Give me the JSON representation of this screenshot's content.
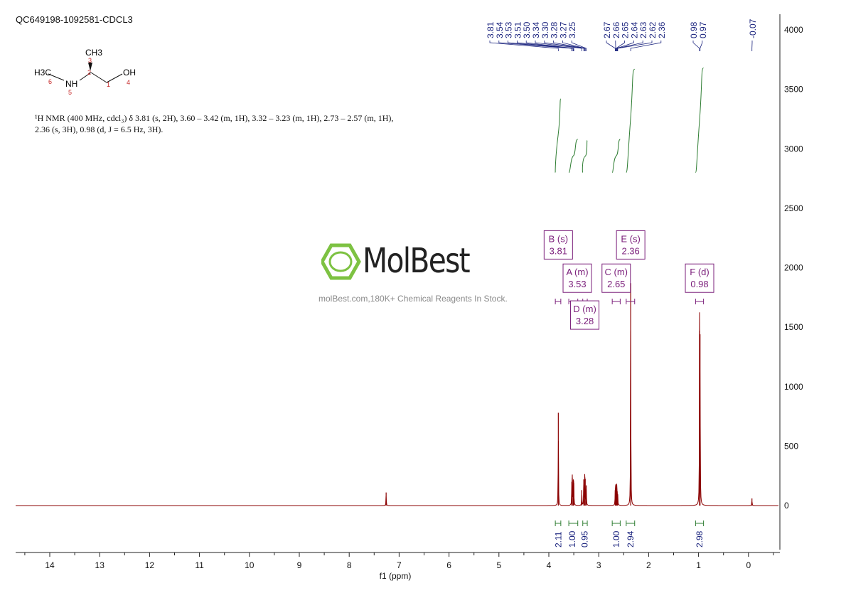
{
  "header": {
    "sample_id": "QC649198-1092581-CDCL3"
  },
  "description": {
    "line1": "¹H NMR (400 MHz, cdcl₃) δ 3.81 (s, 2H), 3.60 – 3.42 (m, 1H), 3.32 – 3.23 (m, 1H), 2.73 – 2.57 (m, 1H),",
    "line2": "2.36 (s, 3H), 0.98 (d, J = 6.5 Hz, 3H)."
  },
  "structure": {
    "labels": [
      "CH3",
      "H3C",
      "NH",
      "OH"
    ],
    "atom_numbers": [
      "3",
      "2",
      "6",
      "5",
      "1",
      "4"
    ]
  },
  "watermark": {
    "brand": "MolBest",
    "tagline": "molBest.com,180K+ Chemical Reagents In Stock."
  },
  "colors": {
    "spectrum": "#8b0000",
    "peak_labels": "#1a237e",
    "integrals": "#2e7d32",
    "multiplets": "#7b1f7b",
    "logo_green": "#7dc242"
  },
  "chart_data": {
    "type": "line",
    "title": "",
    "xlabel": "f1 (ppm)",
    "ylabel": "",
    "xlim": [
      14.7,
      -0.6
    ],
    "ylim": [
      -400,
      4100
    ],
    "x_ticks": [
      14,
      13,
      12,
      11,
      10,
      9,
      8,
      7,
      6,
      5,
      4,
      3,
      2,
      1,
      0
    ],
    "y_ticks": [
      0,
      500,
      1000,
      1500,
      2000,
      2500,
      3000,
      3500,
      4000
    ],
    "peaks": [
      {
        "ppm": 7.26,
        "height": 110
      },
      {
        "ppm": 3.81,
        "height": 780
      },
      {
        "ppm": 3.54,
        "height": 200
      },
      {
        "ppm": 3.53,
        "height": 230
      },
      {
        "ppm": 3.51,
        "height": 215
      },
      {
        "ppm": 3.5,
        "height": 190
      },
      {
        "ppm": 3.34,
        "height": 130
      },
      {
        "ppm": 3.3,
        "height": 220
      },
      {
        "ppm": 3.28,
        "height": 240
      },
      {
        "ppm": 3.27,
        "height": 225
      },
      {
        "ppm": 3.25,
        "height": 170
      },
      {
        "ppm": 2.67,
        "height": 130
      },
      {
        "ppm": 2.66,
        "height": 150
      },
      {
        "ppm": 2.65,
        "height": 160
      },
      {
        "ppm": 2.64,
        "height": 145
      },
      {
        "ppm": 2.63,
        "height": 120
      },
      {
        "ppm": 2.62,
        "height": 95
      },
      {
        "ppm": 2.36,
        "height": 1870
      },
      {
        "ppm": 0.98,
        "height": 1470
      },
      {
        "ppm": 0.97,
        "height": 1440
      },
      {
        "ppm": -0.07,
        "height": 60
      }
    ],
    "peak_labels": [
      "3.81",
      "3.54",
      "3.53",
      "3.51",
      "3.50",
      "3.34",
      "3.30",
      "3.28",
      "3.27",
      "3.25",
      "2.67",
      "2.66",
      "2.65",
      "2.64",
      "2.63",
      "2.62",
      "2.36",
      "0.98",
      "0.97",
      "-0.07"
    ],
    "integrals": [
      {
        "ppm": 3.81,
        "value": "2.11",
        "range": [
          3.87,
          3.76
        ],
        "top": 3420,
        "bottom": 2800
      },
      {
        "ppm": 3.53,
        "value": "1.00",
        "range": [
          3.6,
          3.42
        ],
        "top": 3080,
        "bottom": 2800
      },
      {
        "ppm": 3.28,
        "value": "0.95",
        "range": [
          3.32,
          3.23
        ],
        "top": 3070,
        "bottom": 2800
      },
      {
        "ppm": 2.65,
        "value": "1.00",
        "range": [
          2.73,
          2.57
        ],
        "top": 3080,
        "bottom": 2800
      },
      {
        "ppm": 2.36,
        "value": "2.94",
        "range": [
          2.45,
          2.28
        ],
        "top": 3670,
        "bottom": 2800
      },
      {
        "ppm": 0.98,
        "value": "2.98",
        "range": [
          1.06,
          0.9
        ],
        "top": 3680,
        "bottom": 2800
      }
    ],
    "multiplets": [
      {
        "letter": "B (s)",
        "shift": "3.81",
        "ppm": 3.81,
        "y": 2180
      },
      {
        "letter": "A (m)",
        "shift": "3.53",
        "ppm": 3.43,
        "y": 1900
      },
      {
        "letter": "D (m)",
        "shift": "3.28",
        "ppm": 3.28,
        "y": 1590
      },
      {
        "letter": "C (m)",
        "shift": "2.65",
        "ppm": 2.65,
        "y": 1900
      },
      {
        "letter": "E (s)",
        "shift": "2.36",
        "ppm": 2.36,
        "y": 2180
      },
      {
        "letter": "F (d)",
        "shift": "0.98",
        "ppm": 0.98,
        "y": 1900
      }
    ],
    "multiplet_ranges": [
      [
        3.87,
        3.76
      ],
      [
        3.6,
        3.42
      ],
      [
        3.32,
        3.23
      ],
      [
        2.73,
        2.57
      ],
      [
        2.45,
        2.28
      ],
      [
        1.06,
        0.9
      ]
    ]
  }
}
